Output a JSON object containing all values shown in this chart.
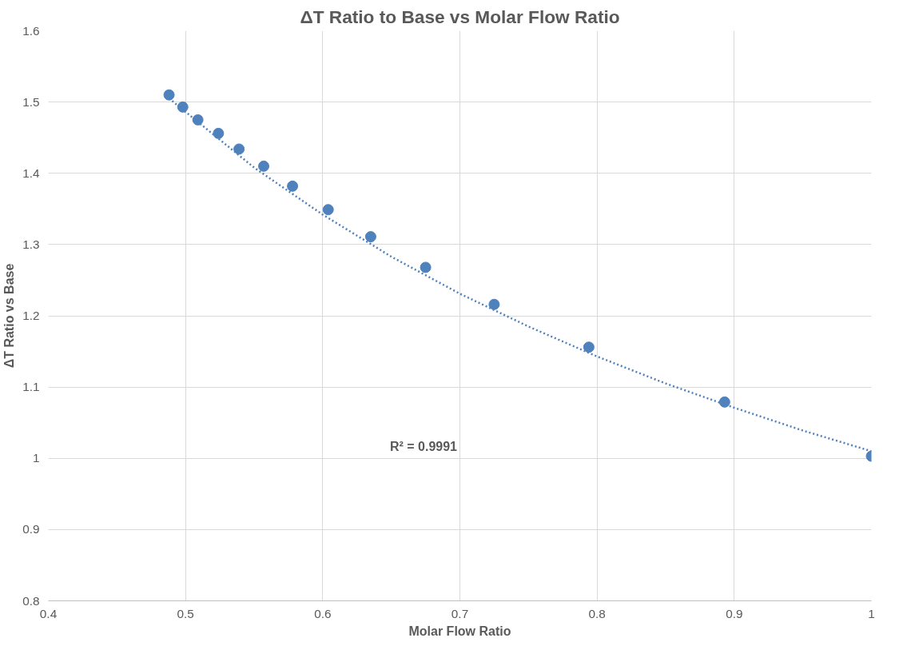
{
  "chart_data": {
    "type": "scatter",
    "title": "ΔT Ratio to Base vs Molar Flow Ratio",
    "xlabel": "Molar Flow Ratio",
    "ylabel": "ΔT Ratio vs Base",
    "xlim": [
      0.4,
      1
    ],
    "xticks": [
      0.4,
      0.5,
      0.6,
      0.7,
      0.8,
      0.9,
      1
    ],
    "ylim": [
      0.8,
      1.6
    ],
    "yticks": [
      0.8,
      0.9,
      1,
      1.1,
      1.2,
      1.3,
      1.4,
      1.5,
      1.6
    ],
    "grid": true,
    "series": [
      {
        "marker": "circle",
        "color": "#4f81bd",
        "x": [
          0.488,
          0.498,
          0.509,
          0.524,
          0.539,
          0.557,
          0.578,
          0.604,
          0.635,
          0.675,
          0.725,
          0.794,
          0.893,
          1.0
        ],
        "values": [
          1.51,
          1.493,
          1.475,
          1.456,
          1.434,
          1.41,
          1.382,
          1.349,
          1.311,
          1.268,
          1.216,
          1.156,
          1.079,
          1.003
        ]
      },
      {
        "type": "line",
        "line_style": "dotted",
        "color": "#4f81bd",
        "x": [
          0.488,
          0.55,
          0.6,
          0.65,
          0.7,
          0.75,
          0.8,
          0.85,
          0.9,
          0.95,
          1.0
        ],
        "values": [
          1.505,
          1.408,
          1.342,
          1.283,
          1.231,
          1.185,
          1.143,
          1.105,
          1.071,
          1.039,
          1.01
        ]
      }
    ],
    "annotations": [
      "R² = 0.9991"
    ]
  }
}
